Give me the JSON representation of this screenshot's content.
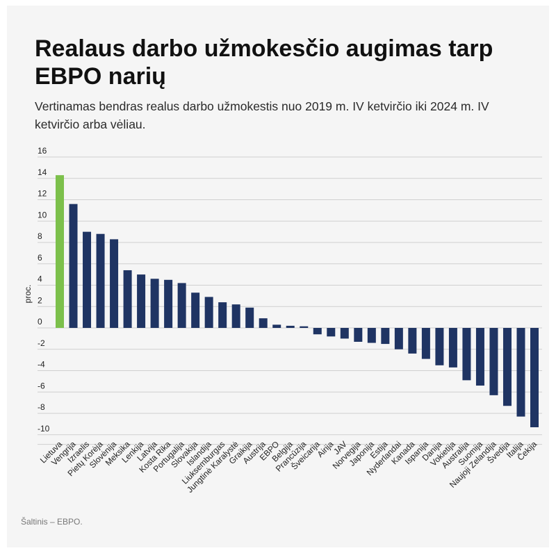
{
  "title": "Realaus darbo užmokesčio augimas tarp EBPO narių",
  "subtitle": "Vertinamas bendras realus darbo užmokestis nuo 2019 m. IV ketvirčio iki 2024 m. IV ketvirčio arba vėliau.",
  "source": "Šaltinis – EBPO.",
  "colors": {
    "highlight": "#7cc04b",
    "bar": "#1f3463",
    "grid": "#cfcfcf"
  },
  "chart_data": {
    "type": "bar",
    "ylabel": "proc.",
    "ylim": [
      -11,
      16
    ],
    "yticks": [
      16,
      14,
      12,
      10,
      8,
      6,
      4,
      2,
      0,
      -2,
      -4,
      -6,
      -8,
      -10
    ],
    "grid": true,
    "highlight_category": "Lietuva",
    "categories": [
      "Lietuva",
      "Vengrija",
      "Izraelis",
      "Pietų Korėja",
      "Slovėnija",
      "Meksika",
      "Lenkija",
      "Latvija",
      "Kosta Rika",
      "Portugalija",
      "Slovakija",
      "Islandija",
      "Liuksemburgas",
      "Jungtinė Karalystė",
      "Graikija",
      "Austrija",
      "EBPO",
      "Belgija",
      "Prancūzija",
      "Šveicarija",
      "Airija",
      "JAV",
      "Norvegija",
      "Japonija",
      "Estija",
      "Nyderlandai",
      "Kanada",
      "Ispanija",
      "Danija",
      "Vokietija",
      "Australija",
      "Suomija",
      "Naujoji Zelandija",
      "Švedija",
      "Italija",
      "Čekija"
    ],
    "values": [
      14.3,
      11.6,
      9.0,
      8.8,
      8.3,
      5.4,
      5.0,
      4.6,
      4.5,
      4.2,
      3.3,
      2.9,
      2.4,
      2.2,
      1.9,
      0.9,
      0.3,
      0.2,
      0.15,
      -0.6,
      -0.8,
      -1.0,
      -1.3,
      -1.4,
      -1.5,
      -2.0,
      -2.4,
      -2.9,
      -3.5,
      -3.7,
      -4.9,
      -5.4,
      -6.3,
      -7.3,
      -8.3,
      -9.3
    ]
  }
}
